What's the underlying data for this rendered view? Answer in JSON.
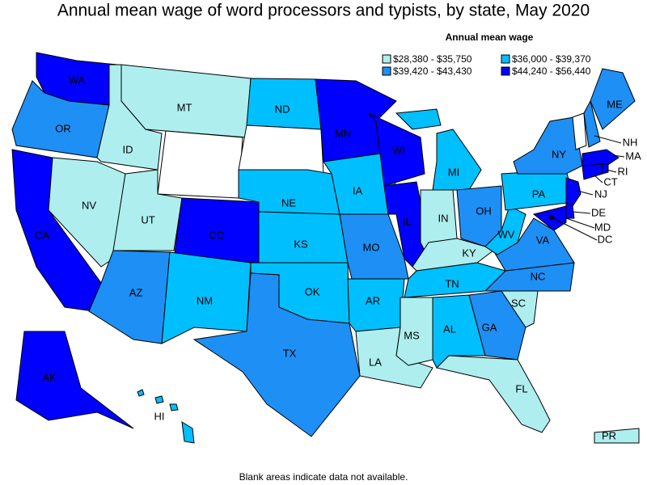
{
  "title": "Annual mean wage of word processors and typists, by state, May 2020",
  "legend": {
    "title": "Annual mean wage",
    "items": [
      {
        "label": "$28,380 - $35,750",
        "color": "#aeeeee"
      },
      {
        "label": "$36,000 - $39,370",
        "color": "#00bfff"
      },
      {
        "label": "$39,420 - $43,430",
        "color": "#1e8ff5"
      },
      {
        "label": "$44,240 - $56,440",
        "color": "#0000ff"
      }
    ]
  },
  "states": [
    {
      "label": "WA",
      "color": "#0000ff"
    },
    {
      "label": "OR",
      "color": "#1e8ff5"
    },
    {
      "label": "CA",
      "color": "#0000ff"
    },
    {
      "label": "NV",
      "color": "#aeeeee"
    },
    {
      "label": "ID",
      "color": "#aeeeee"
    },
    {
      "label": "MT",
      "color": "#aeeeee"
    },
    {
      "label": "UT",
      "color": "#aeeeee"
    },
    {
      "label": "AZ",
      "color": "#1e8ff5"
    },
    {
      "label": "CO",
      "color": "#0000ff"
    },
    {
      "label": "NM",
      "color": "#00bfff"
    },
    {
      "label": "ND",
      "color": "#00bfff"
    },
    {
      "label": "NE",
      "color": "#00bfff"
    },
    {
      "label": "KS",
      "color": "#00bfff"
    },
    {
      "label": "OK",
      "color": "#00bfff"
    },
    {
      "label": "TX",
      "color": "#1e8ff5"
    },
    {
      "label": "MN",
      "color": "#0000ff"
    },
    {
      "label": "IA",
      "color": "#00bfff"
    },
    {
      "label": "MO",
      "color": "#1e8ff5"
    },
    {
      "label": "AR",
      "color": "#00bfff"
    },
    {
      "label": "LA",
      "color": "#aeeeee"
    },
    {
      "label": "WI",
      "color": "#0000ff"
    },
    {
      "label": "IL",
      "color": "#0000ff"
    },
    {
      "label": "MI",
      "color": "#00bfff"
    },
    {
      "label": "IN",
      "color": "#aeeeee"
    },
    {
      "label": "OH",
      "color": "#1e8ff5"
    },
    {
      "label": "KY",
      "color": "#aeeeee"
    },
    {
      "label": "TN",
      "color": "#00bfff"
    },
    {
      "label": "MS",
      "color": "#aeeeee"
    },
    {
      "label": "AL",
      "color": "#00bfff"
    },
    {
      "label": "GA",
      "color": "#1e8ff5"
    },
    {
      "label": "FL",
      "color": "#aeeeee"
    },
    {
      "label": "SC",
      "color": "#aeeeee"
    },
    {
      "label": "NC",
      "color": "#1e8ff5"
    },
    {
      "label": "VA",
      "color": "#1e8ff5"
    },
    {
      "label": "WV",
      "color": "#00bfff"
    },
    {
      "label": "PA",
      "color": "#00bfff"
    },
    {
      "label": "NY",
      "color": "#1e8ff5"
    },
    {
      "label": "NH",
      "color": "#1e8ff5"
    },
    {
      "label": "ME",
      "color": "#1e8ff5"
    },
    {
      "label": "MA",
      "color": "#0000ff"
    },
    {
      "label": "CT",
      "color": "#0000ff"
    },
    {
      "label": "RI",
      "color": "#0000ff"
    },
    {
      "label": "NJ",
      "color": "#0000ff"
    },
    {
      "label": "DE",
      "color": "#0000ff"
    },
    {
      "label": "MD",
      "color": "#0000ff"
    },
    {
      "label": "DC",
      "color": "#0000ff"
    },
    {
      "label": "AK",
      "color": "#0000ff"
    },
    {
      "label": "HI",
      "color": "#00bfff"
    },
    {
      "label": "PR",
      "color": "#aeeeee"
    }
  ],
  "footnote": "Blank areas indicate data not available."
}
